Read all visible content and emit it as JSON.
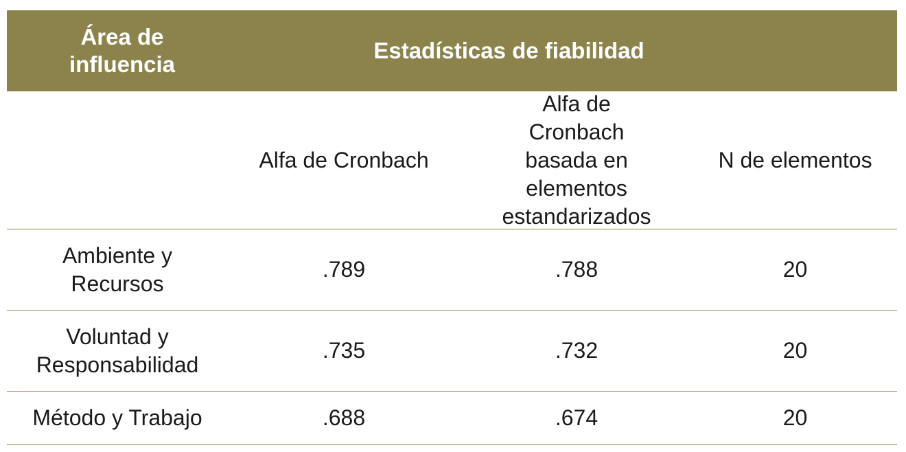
{
  "header": {
    "area_label": "Área de influencia",
    "stats_label": "Estadísticas de fiabilidad"
  },
  "subheader": {
    "col0": "",
    "col1": "Alfa de Cronbach",
    "col2": "Alfa de Cronbach basada en elementos estandarizados",
    "col3": "N de elementos"
  },
  "rows": [
    {
      "area": "Ambiente y Recursos",
      "alpha": ".789",
      "alpha_std": ".788",
      "n": "20"
    },
    {
      "area": "Voluntad y Responsabilidad",
      "alpha": ".735",
      "alpha_std": ".732",
      "n": "20"
    },
    {
      "area": "Método y Trabajo",
      "alpha": ".688",
      "alpha_std": ".674",
      "n": "20"
    }
  ],
  "colors": {
    "header_bg": "#8c834c",
    "header_text": "#ffffff",
    "rule": "#8c834c"
  }
}
